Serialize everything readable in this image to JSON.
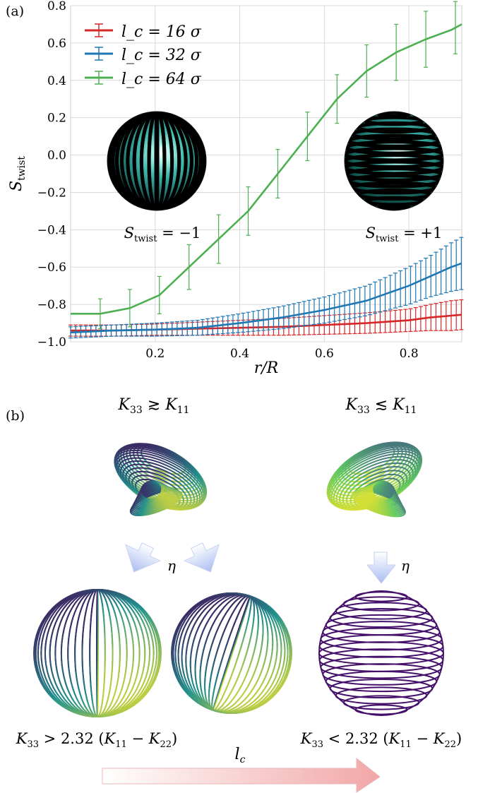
{
  "panels": {
    "a_label": "(a)",
    "b_label": "(b)"
  },
  "chart_data": {
    "type": "line",
    "xlabel": "r/R",
    "ylabel": "S_twist",
    "xlim": [
      0.0,
      0.925
    ],
    "ylim": [
      -1.0,
      0.8
    ],
    "xticks": [
      "0.2",
      "0.4",
      "0.6",
      "0.8"
    ],
    "xtick_values": [
      0.2,
      0.4,
      0.6,
      0.8
    ],
    "yticks": [
      "−1.0",
      "−0.8",
      "−0.6",
      "−0.4",
      "−0.2",
      "0.0",
      "0.2",
      "0.4",
      "0.6",
      "0.8"
    ],
    "ytick_values": [
      -1.0,
      -0.8,
      -0.6,
      -0.4,
      -0.2,
      0.0,
      0.2,
      0.4,
      0.6,
      0.8
    ],
    "grid": true,
    "legend_position": "top-left",
    "series": [
      {
        "name": "l_c = 16 σ",
        "color": "#d62728",
        "x": [
          0.0,
          0.1,
          0.2,
          0.3,
          0.4,
          0.5,
          0.6,
          0.7,
          0.8,
          0.85,
          0.9,
          0.925
        ],
        "y": [
          -0.94,
          -0.94,
          -0.935,
          -0.93,
          -0.925,
          -0.92,
          -0.91,
          -0.9,
          -0.885,
          -0.87,
          -0.86,
          -0.855
        ],
        "err": [
          0.03,
          0.03,
          0.03,
          0.035,
          0.04,
          0.045,
          0.05,
          0.055,
          0.06,
          0.07,
          0.08,
          0.08
        ]
      },
      {
        "name": "l_c = 32 σ",
        "color": "#1f77b4",
        "x": [
          0.0,
          0.1,
          0.2,
          0.3,
          0.4,
          0.5,
          0.6,
          0.7,
          0.75,
          0.8,
          0.85,
          0.9,
          0.925
        ],
        "y": [
          -0.95,
          -0.94,
          -0.935,
          -0.925,
          -0.9,
          -0.87,
          -0.83,
          -0.78,
          -0.74,
          -0.7,
          -0.65,
          -0.6,
          -0.58
        ],
        "err": [
          0.03,
          0.03,
          0.035,
          0.04,
          0.05,
          0.06,
          0.07,
          0.08,
          0.09,
          0.1,
          0.11,
          0.13,
          0.14
        ]
      },
      {
        "name": "l_c = 64 σ",
        "color": "#4caf50",
        "x": [
          0.0,
          0.07,
          0.14,
          0.21,
          0.28,
          0.35,
          0.42,
          0.49,
          0.56,
          0.63,
          0.7,
          0.77,
          0.84,
          0.9,
          0.925
        ],
        "y": [
          -0.85,
          -0.85,
          -0.82,
          -0.75,
          -0.6,
          -0.45,
          -0.3,
          -0.1,
          0.1,
          0.3,
          0.45,
          0.55,
          0.62,
          0.67,
          0.7
        ],
        "err": [
          0.05,
          0.08,
          0.1,
          0.1,
          0.12,
          0.13,
          0.13,
          0.13,
          0.13,
          0.13,
          0.14,
          0.15,
          0.15,
          0.14,
          0.14
        ]
      }
    ],
    "annotations": [
      "S_twist = −1",
      "S_twist = +1"
    ]
  },
  "panel_b": {
    "left_title": "K33 ≳ K11",
    "right_title": "K33 ≲ K11",
    "eta": "η",
    "left_condition": "K33 > 2.32 (K11 − K22)",
    "right_condition": "K33 < 2.32 (K11 − K22)",
    "arrow_label": "l_c"
  }
}
